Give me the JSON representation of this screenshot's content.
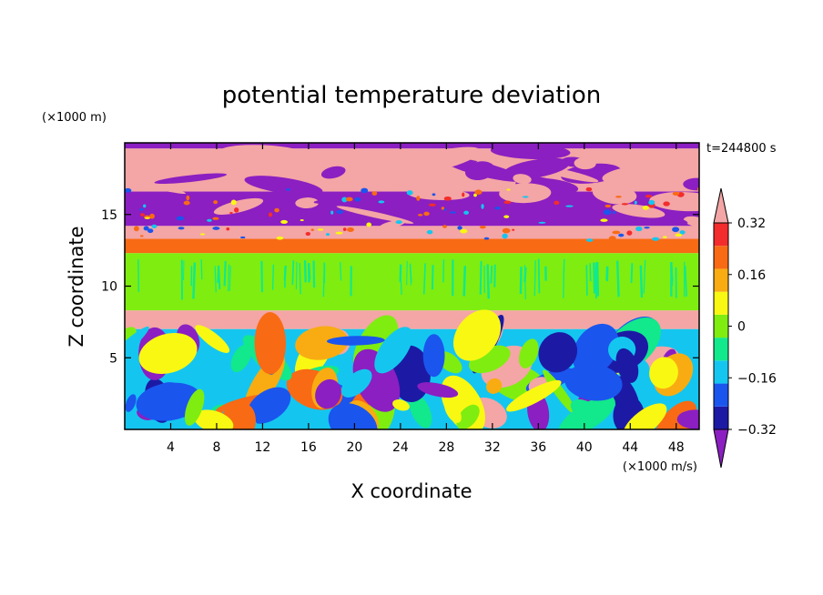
{
  "chart_data": {
    "type": "heatmap",
    "title": "potential temperature deviation",
    "xlabel": "X coordinate",
    "ylabel": "Z coordinate",
    "x_units": "(×1000 m/s)",
    "y_units": "(×1000 m)",
    "time_label": "t=244800 s",
    "xlim": [
      0,
      50
    ],
    "ylim": [
      0,
      20
    ],
    "x_ticks": [
      4,
      8,
      12,
      16,
      20,
      24,
      28,
      32,
      36,
      40,
      44,
      48
    ],
    "y_ticks": [
      5,
      10,
      15
    ],
    "colorbar": {
      "levels": [
        -0.4,
        -0.32,
        -0.24,
        -0.16,
        -0.08,
        0,
        0.08,
        0.16,
        0.24,
        0.32,
        0.4
      ],
      "tick_labels": [
        "0.32",
        "0.16",
        "0",
        "−0.16",
        "−0.32"
      ],
      "tick_values": [
        0.32,
        0.16,
        0,
        -0.16,
        -0.32
      ],
      "colors": [
        "#8b1fc1",
        "#1c1aa5",
        "#1a55ee",
        "#14c6ef",
        "#12e88c",
        "#7fed10",
        "#f9f812",
        "#f8ac12",
        "#f86a14",
        "#f32c2c",
        "#f4a5a5"
      ],
      "extend": "both"
    },
    "bands": [
      {
        "z": [
          19.6,
          20
        ],
        "value": -0.45
      },
      {
        "z": [
          16.6,
          19.6
        ],
        "value": 0.45
      },
      {
        "z": [
          14.2,
          16.6
        ],
        "value": -0.45
      },
      {
        "z": [
          13.3,
          14.2
        ],
        "value": 0.45
      },
      {
        "z": [
          12.3,
          13.3
        ],
        "value": 0.3
      },
      {
        "z": [
          8.3,
          12.3
        ],
        "value": 0.04
      },
      {
        "z": [
          7.0,
          8.3
        ],
        "value": 0.45
      },
      {
        "z": [
          0,
          7.0
        ],
        "value": -0.12
      }
    ]
  }
}
